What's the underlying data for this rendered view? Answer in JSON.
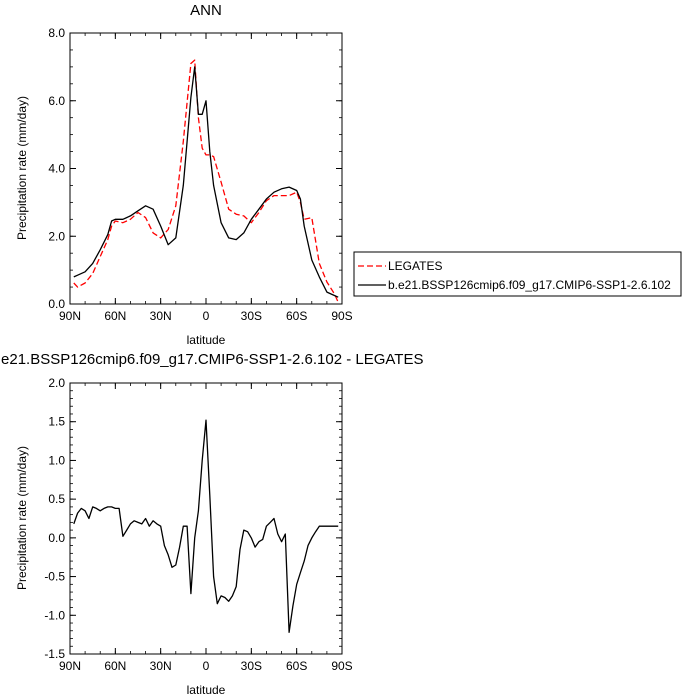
{
  "chart_data": [
    {
      "type": "line",
      "title": "ANN",
      "xlabel": "latitude",
      "ylabel": "Precipitation rate (mm/day)",
      "xlim": [
        90,
        -90
      ],
      "ylim": [
        0,
        8
      ],
      "x_ticks": [
        90,
        60,
        30,
        0,
        -30,
        -60,
        -90
      ],
      "x_tick_labels": [
        "90N",
        "60N",
        "30N",
        "0",
        "30S",
        "60S",
        "90S"
      ],
      "y_ticks": [
        0,
        2,
        4,
        6,
        8
      ],
      "y_tick_labels": [
        "0.0",
        "2.0",
        "4.0",
        "6.0",
        "8.0"
      ],
      "legend_position": "right",
      "series": [
        {
          "name": "LEGATES",
          "color": "#ff0000",
          "dash": "dashed",
          "x": [
            87.5,
            85,
            80,
            75,
            70,
            65,
            62.5,
            60,
            55,
            50,
            45,
            40,
            35,
            30,
            25,
            20,
            15,
            10,
            7.5,
            5,
            2.5,
            0,
            -2.5,
            -5,
            -10,
            -15,
            -20,
            -25,
            -30,
            -35,
            -40,
            -45,
            -50,
            -55,
            -60,
            -62.5,
            -65,
            -70,
            -75,
            -80,
            -85,
            -87.5
          ],
          "values": [
            0.62,
            0.5,
            0.62,
            0.9,
            1.4,
            1.9,
            2.3,
            2.45,
            2.4,
            2.5,
            2.7,
            2.55,
            2.1,
            1.95,
            2.2,
            2.9,
            4.8,
            7.1,
            7.2,
            5.5,
            4.6,
            4.4,
            4.4,
            4.35,
            3.6,
            2.8,
            2.65,
            2.6,
            2.4,
            2.7,
            3.05,
            3.2,
            3.2,
            3.2,
            3.3,
            3.0,
            2.5,
            2.55,
            1.2,
            0.65,
            0.3,
            0.05
          ]
        },
        {
          "name": "b.e21.BSSP126cmip6.f09_g17.CMIP6-SSP1-2.6.102",
          "color": "#000000",
          "dash": "solid",
          "x": [
            87.5,
            85,
            80,
            75,
            70,
            65,
            62.5,
            60,
            55,
            50,
            45,
            40,
            35,
            30,
            25,
            20,
            15,
            10,
            7.5,
            5,
            2.5,
            0,
            -2.5,
            -5,
            -10,
            -15,
            -20,
            -25,
            -30,
            -35,
            -40,
            -45,
            -50,
            -55,
            -60,
            -62.5,
            -65,
            -70,
            -75,
            -80,
            -85,
            -87.5
          ],
          "values": [
            0.8,
            0.85,
            0.95,
            1.2,
            1.6,
            2.05,
            2.45,
            2.5,
            2.5,
            2.6,
            2.75,
            2.9,
            2.8,
            2.3,
            1.75,
            1.95,
            3.5,
            6.1,
            7.0,
            5.6,
            5.6,
            6.0,
            4.5,
            3.5,
            2.4,
            1.95,
            1.9,
            2.1,
            2.5,
            2.8,
            3.1,
            3.3,
            3.4,
            3.45,
            3.35,
            3.1,
            2.3,
            1.3,
            0.8,
            0.35,
            0.25,
            0.2
          ]
        }
      ]
    },
    {
      "type": "line",
      "title": "b.e21.BSSP126cmip6.f09_g17.CMIP6-SSP1-2.6.102 - LEGATES",
      "xlabel": "latitude",
      "ylabel": "Precipitation rate (mm/day)",
      "xlim": [
        90,
        -90
      ],
      "ylim": [
        -1.5,
        2.0
      ],
      "x_ticks": [
        90,
        60,
        30,
        0,
        -30,
        -60,
        -90
      ],
      "x_tick_labels": [
        "90N",
        "60N",
        "30N",
        "0",
        "30S",
        "60S",
        "90S"
      ],
      "y_ticks": [
        -1.5,
        -1.0,
        -0.5,
        0.0,
        0.5,
        1.0,
        1.5,
        2.0
      ],
      "y_tick_labels": [
        "-1.5",
        "-1.0",
        "-0.5",
        "0.0",
        "0.5",
        "1.0",
        "1.5",
        "2.0"
      ],
      "series": [
        {
          "color": "#000000",
          "dash": "solid",
          "x": [
            87.5,
            85,
            82.5,
            80,
            77.5,
            75,
            72.5,
            70,
            67.5,
            65,
            62.5,
            60,
            57.5,
            55,
            52.5,
            50,
            47.5,
            45,
            42.5,
            40,
            37.5,
            35,
            32.5,
            30,
            27.5,
            25,
            22.5,
            20,
            17.5,
            15,
            12.5,
            10,
            7.5,
            5,
            2.5,
            0,
            -2.5,
            -5,
            -7.5,
            -10,
            -12.5,
            -15,
            -17.5,
            -20,
            -22.5,
            -25,
            -27.5,
            -30,
            -32.5,
            -35,
            -37.5,
            -40,
            -42.5,
            -45,
            -47.5,
            -50,
            -52.5,
            -55,
            -57.5,
            -60,
            -62.5,
            -65,
            -67.5,
            -70,
            -72.5,
            -75,
            -77.5,
            -80,
            -82.5,
            -85,
            -87.5
          ],
          "values": [
            0.18,
            0.32,
            0.38,
            0.35,
            0.25,
            0.4,
            0.38,
            0.35,
            0.38,
            0.4,
            0.4,
            0.38,
            0.38,
            0.02,
            0.1,
            0.18,
            0.22,
            0.2,
            0.18,
            0.25,
            0.15,
            0.22,
            0.18,
            0.15,
            -0.1,
            -0.22,
            -0.38,
            -0.35,
            -0.12,
            0.15,
            0.15,
            -0.72,
            0.0,
            0.35,
            1.0,
            1.52,
            0.55,
            -0.5,
            -0.85,
            -0.75,
            -0.77,
            -0.82,
            -0.75,
            -0.63,
            -0.15,
            0.1,
            0.08,
            0.0,
            -0.12,
            -0.05,
            -0.02,
            0.15,
            0.2,
            0.25,
            0.05,
            -0.05,
            0.05,
            -1.22,
            -0.88,
            -0.6,
            -0.45,
            -0.3,
            -0.1,
            0.0,
            0.08,
            0.15,
            0.15,
            0.15,
            0.15,
            0.15,
            0.15
          ]
        }
      ]
    }
  ]
}
